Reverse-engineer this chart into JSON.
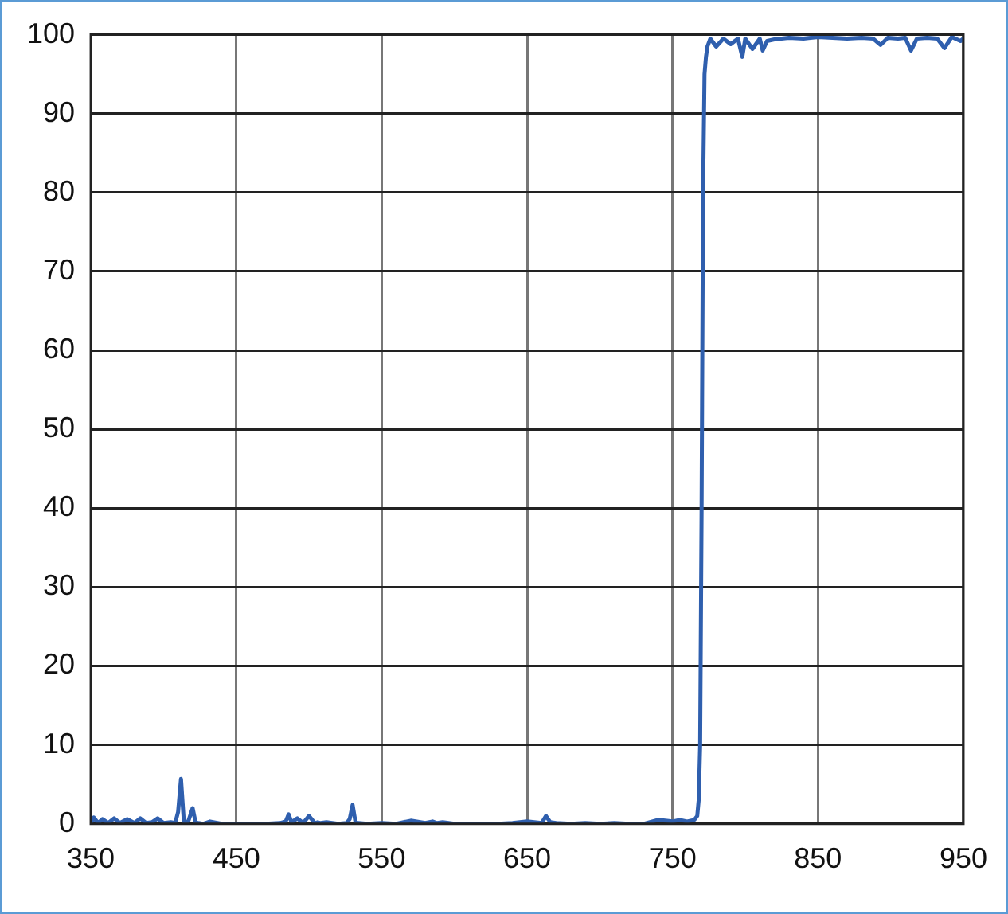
{
  "chart_data": {
    "type": "line",
    "x": [
      350,
      352,
      355,
      358,
      362,
      366,
      370,
      375,
      380,
      384,
      388,
      392,
      396,
      400,
      405,
      408,
      410,
      412,
      414,
      417,
      420,
      422,
      424,
      427,
      432,
      440,
      450,
      460,
      470,
      480,
      484,
      486,
      488,
      492,
      496,
      500,
      504,
      506,
      508,
      512,
      520,
      526,
      528,
      530,
      532,
      534,
      540,
      550,
      560,
      570,
      580,
      585,
      588,
      592,
      600,
      610,
      620,
      630,
      640,
      650,
      660,
      663,
      666,
      670,
      680,
      690,
      700,
      710,
      720,
      730,
      740,
      750,
      755,
      760,
      765,
      767,
      768,
      769,
      770,
      771,
      772,
      773,
      774,
      776,
      780,
      785,
      790,
      795,
      798,
      800,
      805,
      810,
      812,
      815,
      820,
      830,
      840,
      850,
      860,
      870,
      880,
      888,
      893,
      898,
      905,
      910,
      914,
      918,
      925,
      932,
      937,
      942,
      948,
      950
    ],
    "values": [
      0,
      0.8,
      0.1,
      0.6,
      0.1,
      0.7,
      0.1,
      0.6,
      0.1,
      0.7,
      0.1,
      0.2,
      0.7,
      0.1,
      0.2,
      0.1,
      1.5,
      5.7,
      0.2,
      0.3,
      2,
      0.2,
      0.1,
      0,
      0.3,
      0,
      0,
      0,
      0,
      0.1,
      0.3,
      1.2,
      0.2,
      0.7,
      0.1,
      1,
      0.1,
      0.2,
      0.1,
      0.2,
      0,
      0.1,
      0.6,
      2.4,
      0.2,
      0.1,
      0,
      0.1,
      0,
      0.4,
      0.1,
      0.3,
      0.1,
      0.2,
      0,
      0,
      0,
      0,
      0.1,
      0.3,
      0.1,
      1,
      0.2,
      0.1,
      0,
      0.1,
      0,
      0.1,
      0,
      0,
      0.5,
      0.3,
      0.5,
      0.3,
      0.5,
      1,
      3,
      10,
      40,
      80,
      95,
      97.2,
      98.5,
      99.5,
      98.5,
      99.5,
      98.8,
      99.5,
      97.2,
      99.5,
      98.2,
      99.5,
      98,
      99.2,
      99.4,
      99.6,
      99.5,
      99.7,
      99.6,
      99.5,
      99.6,
      99.5,
      98.7,
      99.6,
      99.5,
      99.6,
      98,
      99.5,
      99.6,
      99.5,
      98.3,
      99.7,
      99.2,
      99.5
    ],
    "color": "#2f5fae",
    "xlim": [
      350,
      950
    ],
    "ylim": [
      0,
      100
    ],
    "xticks": [
      350,
      450,
      550,
      650,
      750,
      850,
      950
    ],
    "yticks": [
      0,
      10,
      20,
      30,
      40,
      50,
      60,
      70,
      80,
      90,
      100
    ],
    "grid": true,
    "legend": false,
    "marker": "none",
    "line_style": "solid"
  }
}
